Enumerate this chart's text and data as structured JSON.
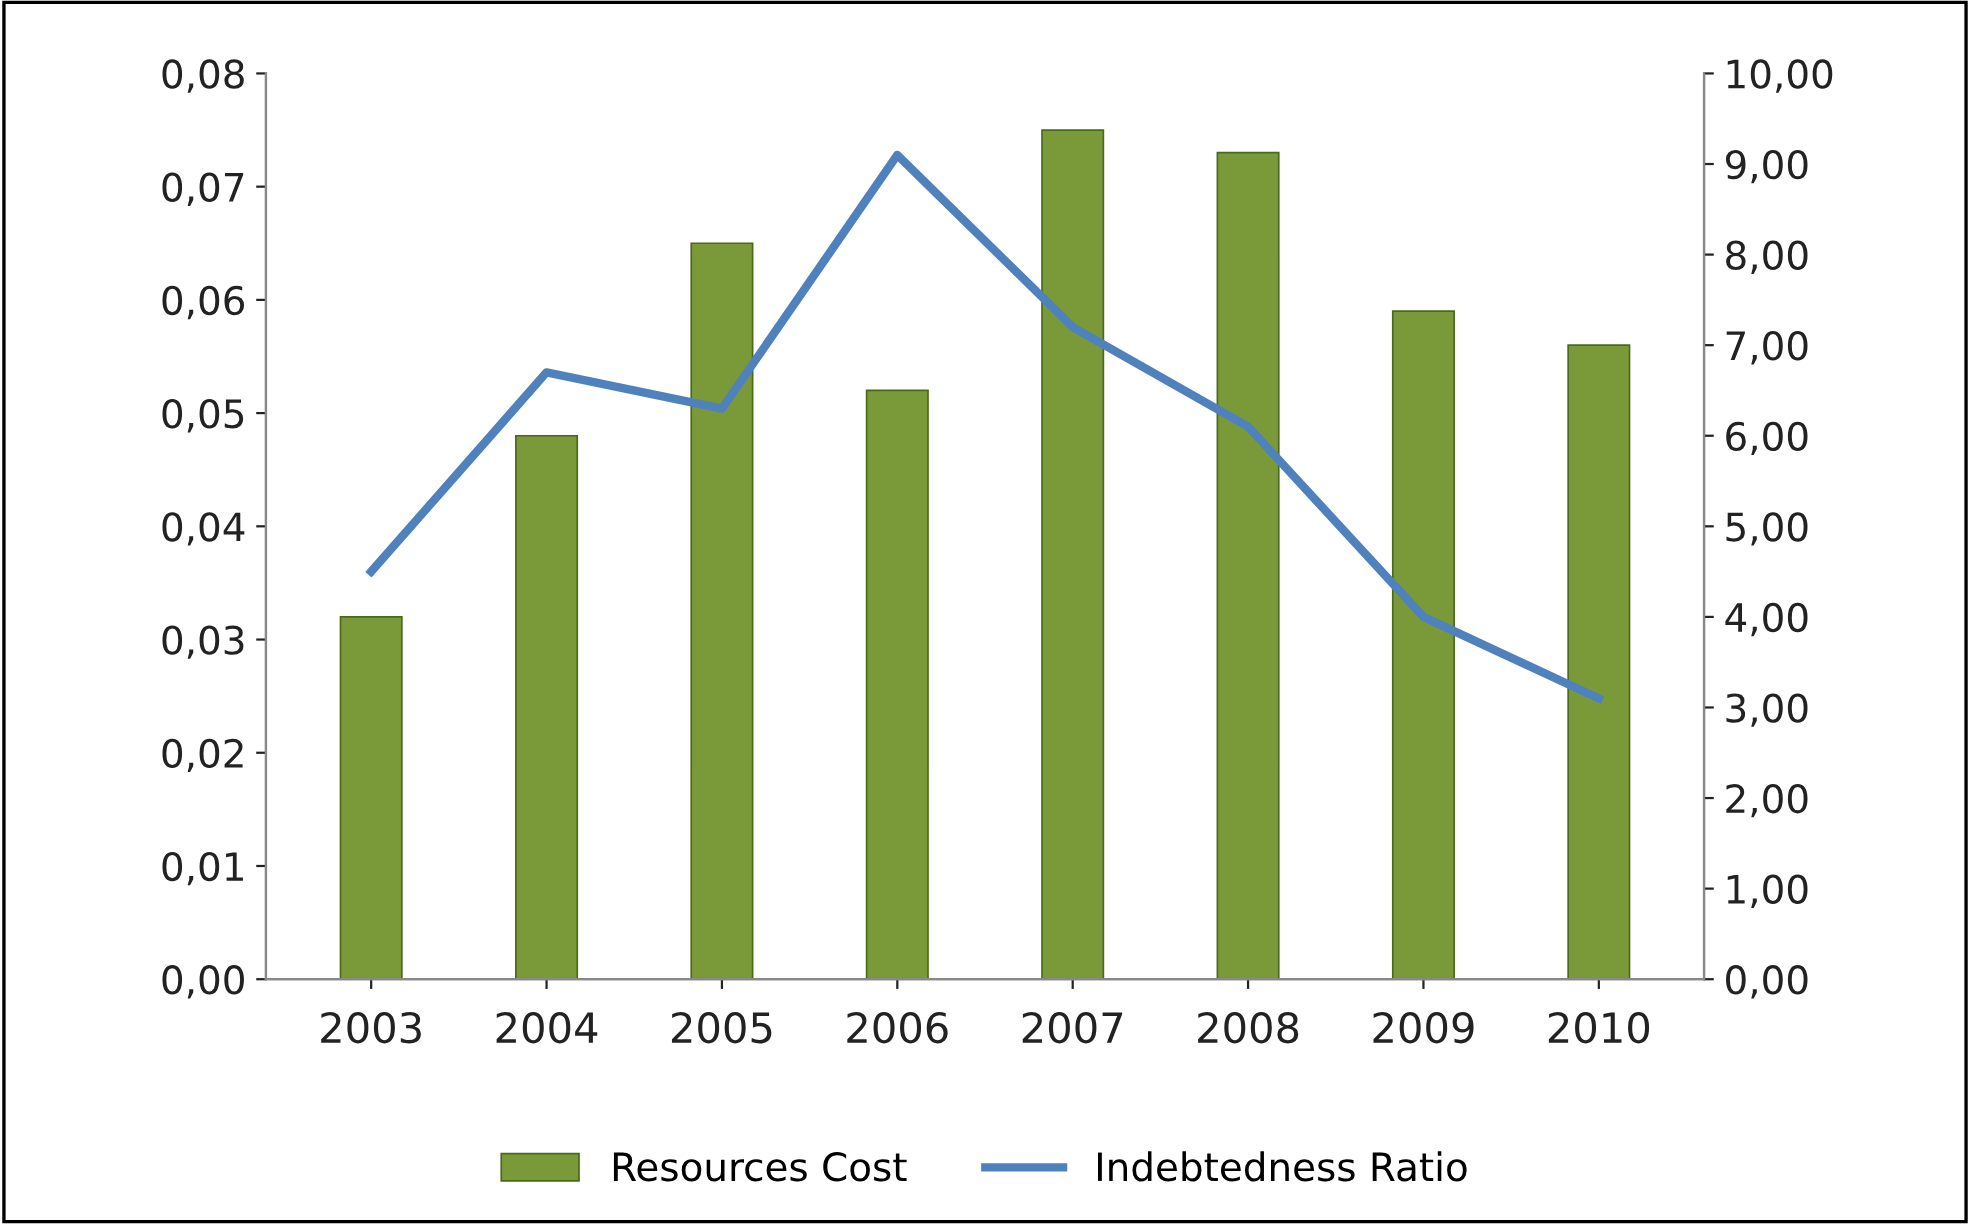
{
  "chart_data": {
    "type": "bar",
    "categories": [
      "2003",
      "2004",
      "2005",
      "2006",
      "2007",
      "2008",
      "2009",
      "2010"
    ],
    "series": [
      {
        "name": "Resources Cost",
        "color": "#7a9a3a",
        "values": [
          0.032,
          0.048,
          0.065,
          0.052,
          0.075,
          0.073,
          0.059,
          0.056
        ]
      },
      {
        "name": "Indebtedness Ratio",
        "type": "line",
        "axis": "y2",
        "color": "#4f81bd",
        "values": [
          4.5,
          6.7,
          6.3,
          9.1,
          7.2,
          6.1,
          4.0,
          3.1
        ]
      }
    ],
    "ylim": [
      0,
      0.08
    ],
    "yticks": [
      {
        "value": 0,
        "label": "0,00"
      },
      {
        "value": 0.01,
        "label": "0,01"
      },
      {
        "value": 0.02,
        "label": "0,02"
      },
      {
        "value": 0.03,
        "label": "0,03"
      },
      {
        "value": 0.04,
        "label": "0,04"
      },
      {
        "value": 0.05,
        "label": "0,05"
      },
      {
        "value": 0.06,
        "label": "0,06"
      },
      {
        "value": 0.07,
        "label": "0,07"
      },
      {
        "value": 0.08,
        "label": "0,08"
      }
    ],
    "y2lim": [
      0,
      10
    ],
    "y2ticks": [
      {
        "value": 0,
        "label": "0,00"
      },
      {
        "value": 1,
        "label": "1,00"
      },
      {
        "value": 2,
        "label": "2,00"
      },
      {
        "value": 3,
        "label": "3,00"
      },
      {
        "value": 4,
        "label": "4,00"
      },
      {
        "value": 5,
        "label": "5,00"
      },
      {
        "value": 6,
        "label": "6,00"
      },
      {
        "value": 7,
        "label": "7,00"
      },
      {
        "value": 8,
        "label": "8,00"
      },
      {
        "value": 9,
        "label": "9,00"
      },
      {
        "value": 10,
        "label": "10,00"
      }
    ],
    "grid": false,
    "legend": "bottom"
  }
}
